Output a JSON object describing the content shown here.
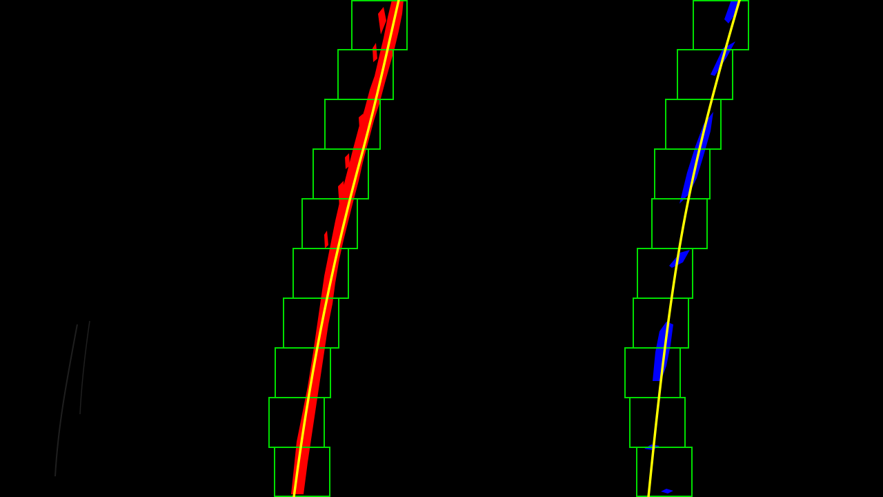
{
  "image": {
    "description_free": true,
    "colors": {
      "background": "#000000",
      "window_box": "#00e000",
      "left_pixels": "#ff0000",
      "right_pixels": "#0000ff",
      "fit_line": "#ffff00"
    }
  },
  "lanes": {
    "left": {
      "label": "left-lane",
      "window_count": 10,
      "pixel_color_name": "red"
    },
    "right": {
      "label": "right-lane",
      "window_count": 10,
      "pixel_color_name": "blue"
    }
  }
}
